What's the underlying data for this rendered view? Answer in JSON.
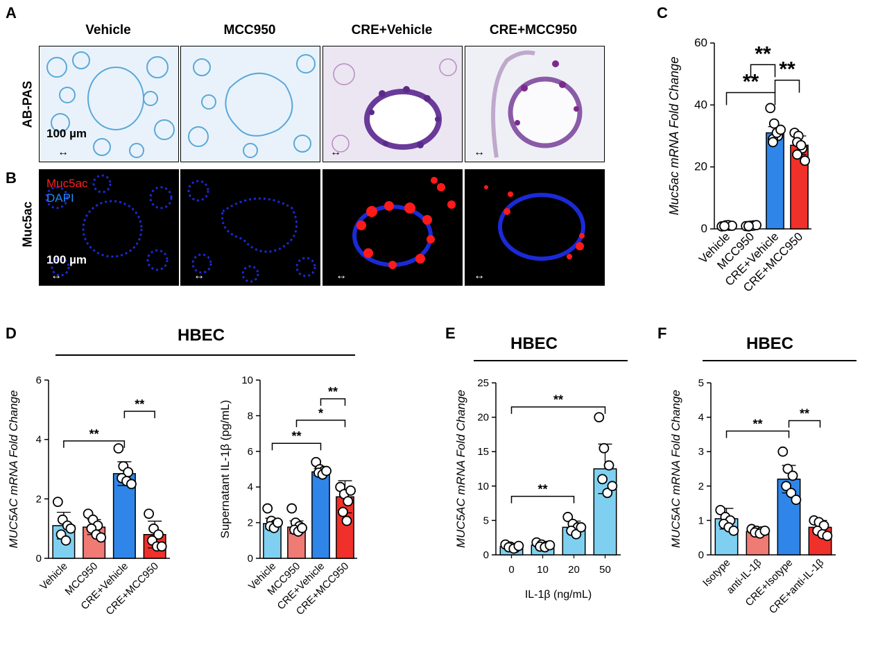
{
  "panel_A": {
    "letter": "A",
    "row_label": "AB-PAS",
    "columns": [
      "Vehicle",
      "MCC950",
      "CRE+Vehicle",
      "CRE+MCC950"
    ],
    "scale_bar": "100 µm"
  },
  "panel_B": {
    "letter": "B",
    "row_label": "Muc5ac",
    "stain_label_1": "Muc5ac",
    "stain_label_2": "DAPI",
    "scale_bar": "100 µm"
  },
  "colors": {
    "light_blue": "#7fd0f0",
    "salmon": "#f07a74",
    "blue": "#2f86e8",
    "red": "#f0302a",
    "muc5ac_red": "#ff2020",
    "dapi_blue": "#1f8cff"
  },
  "chart_data": [
    {
      "id": "C",
      "letter": "C",
      "type": "bar",
      "title": "",
      "xlabel": "",
      "ylabel": "Muc5ac mRNA Fold Change",
      "ylim": [
        0,
        60
      ],
      "yticks": [
        0,
        20,
        40,
        60
      ],
      "categories": [
        "Vehicle",
        "MCC950",
        "CRE+Vehicle",
        "CRE+MCC950"
      ],
      "values": [
        1,
        1,
        31,
        27
      ],
      "errors": [
        0.3,
        0.3,
        2.0,
        3.0
      ],
      "points": [
        [
          0.8,
          1.1,
          1.0,
          0.9,
          1.2,
          1.0,
          0.9
        ],
        [
          0.9,
          1.0,
          1.1,
          0.8,
          1.0,
          1.2,
          0.9
        ],
        [
          39,
          34,
          30,
          29,
          31,
          32,
          28
        ],
        [
          31,
          30,
          26,
          28,
          27,
          22,
          24
        ]
      ],
      "bar_colors": [
        "#7fd0f0",
        "#f07a74",
        "#2f86e8",
        "#f0302a"
      ],
      "significance": [
        {
          "from": 0,
          "to": 2,
          "label": "**",
          "y": 44
        },
        {
          "from": 1,
          "to": 2,
          "label": "**",
          "y": 53
        },
        {
          "from": 2,
          "to": 3,
          "label": "**",
          "y": 48
        }
      ]
    },
    {
      "id": "D1",
      "letter": "D",
      "type": "bar",
      "header": "HBEC",
      "title": "",
      "xlabel": "",
      "ylabel": "MUC5AC mRNA Fold Change",
      "ylim": [
        0,
        6
      ],
      "yticks": [
        0,
        2,
        4,
        6
      ],
      "categories": [
        "Vehicle",
        "MCC950",
        "CRE+Vehicle",
        "CRE+MCC950"
      ],
      "values": [
        1.1,
        1.05,
        2.85,
        0.8
      ],
      "errors": [
        0.45,
        0.25,
        0.4,
        0.45
      ],
      "points": [
        [
          1.9,
          1.3,
          1.1,
          0.8,
          0.6,
          1.0
        ],
        [
          1.5,
          1.3,
          1.1,
          1.0,
          0.8,
          0.7
        ],
        [
          3.7,
          3.1,
          2.9,
          2.7,
          2.6,
          2.5
        ],
        [
          1.5,
          1.0,
          0.8,
          0.6,
          0.4,
          0.4
        ]
      ],
      "bar_colors": [
        "#7fd0f0",
        "#f07a74",
        "#2f86e8",
        "#f0302a"
      ],
      "significance": [
        {
          "from": 0,
          "to": 2,
          "label": "**",
          "y": 3.95
        },
        {
          "from": 2,
          "to": 3,
          "label": "**",
          "y": 4.95
        }
      ]
    },
    {
      "id": "D2",
      "type": "bar",
      "title": "",
      "xlabel": "",
      "ylabel": "Supernatant IL-1β (pg/mL)",
      "ylim": [
        0,
        10
      ],
      "yticks": [
        0,
        2,
        4,
        6,
        8,
        10
      ],
      "categories": [
        "Vehicle",
        "MCC950",
        "CRE+Vehicle",
        "CRE+MCC950"
      ],
      "values": [
        1.95,
        1.75,
        4.85,
        3.45
      ],
      "errors": [
        0.3,
        0.35,
        0.2,
        0.9
      ],
      "points": [
        [
          2.8,
          2.1,
          1.9,
          1.8,
          1.7,
          2.0
        ],
        [
          2.8,
          2.0,
          1.8,
          1.6,
          1.5,
          1.7
        ],
        [
          5.4,
          5.0,
          4.9,
          4.8,
          4.7,
          4.9
        ],
        [
          4.0,
          3.6,
          3.2,
          2.6,
          2.1,
          3.8
        ]
      ],
      "bar_colors": [
        "#7fd0f0",
        "#f07a74",
        "#2f86e8",
        "#f0302a"
      ],
      "significance": [
        {
          "from": 0,
          "to": 2,
          "label": "**",
          "y": 6.45
        },
        {
          "from": 1,
          "to": 3,
          "label": "*",
          "y": 7.75
        },
        {
          "from": 2,
          "to": 3,
          "label": "**",
          "y": 8.95
        }
      ]
    },
    {
      "id": "E",
      "letter": "E",
      "type": "bar",
      "header": "HBEC",
      "title": "",
      "xlabel": "IL-1β (ng/mL)",
      "ylabel": "MUC5AC mRNA Fold Change",
      "ylim": [
        0,
        25
      ],
      "yticks": [
        0,
        5,
        10,
        15,
        20,
        25
      ],
      "categories": [
        "0",
        "10",
        "20",
        "50"
      ],
      "values": [
        1.2,
        1.4,
        4.0,
        12.5
      ],
      "errors": [
        0.3,
        0.4,
        0.9,
        3.6
      ],
      "points": [
        [
          1.5,
          1.2,
          1.0,
          1.1,
          0.9,
          1.3
        ],
        [
          1.8,
          1.5,
          1.3,
          1.2,
          1.1,
          1.4
        ],
        [
          5.5,
          4.5,
          4.0,
          3.5,
          3.0,
          4.0
        ],
        [
          20,
          15.5,
          13,
          11,
          9,
          10
        ]
      ],
      "bar_colors": [
        "#7fd0f0",
        "#7fd0f0",
        "#7fd0f0",
        "#7fd0f0"
      ],
      "significance": [
        {
          "from": 0,
          "to": 2,
          "label": "**",
          "y": 8.5
        },
        {
          "from": 0,
          "to": 3,
          "label": "**",
          "y": 21.5
        }
      ]
    },
    {
      "id": "F",
      "letter": "F",
      "type": "bar",
      "header": "HBEC",
      "title": "",
      "xlabel": "",
      "ylabel": "MUC5AC mRNA Fold Change",
      "ylim": [
        0,
        5
      ],
      "yticks": [
        0,
        1,
        2,
        3,
        4,
        5
      ],
      "categories": [
        "Isotype",
        "anti-IL-1β",
        "CRE+Isotype",
        "CRE+anti-IL-1β"
      ],
      "values": [
        1.05,
        0.68,
        2.2,
        0.8
      ],
      "errors": [
        0.3,
        0.05,
        0.4,
        0.2
      ],
      "points": [
        [
          1.3,
          1.1,
          1.0,
          0.9,
          0.8,
          0.7
        ],
        [
          0.75,
          0.7,
          0.68,
          0.65,
          0.62,
          0.7
        ],
        [
          3.0,
          2.5,
          2.3,
          2.0,
          1.8,
          1.6
        ],
        [
          1.0,
          0.95,
          0.85,
          0.7,
          0.6,
          0.55
        ]
      ],
      "bar_colors": [
        "#7fd0f0",
        "#f07a74",
        "#2f86e8",
        "#f0302a"
      ],
      "significance": [
        {
          "from": 0,
          "to": 2,
          "label": "**",
          "y": 3.6
        },
        {
          "from": 2,
          "to": 3,
          "label": "**",
          "y": 3.9
        }
      ]
    }
  ]
}
